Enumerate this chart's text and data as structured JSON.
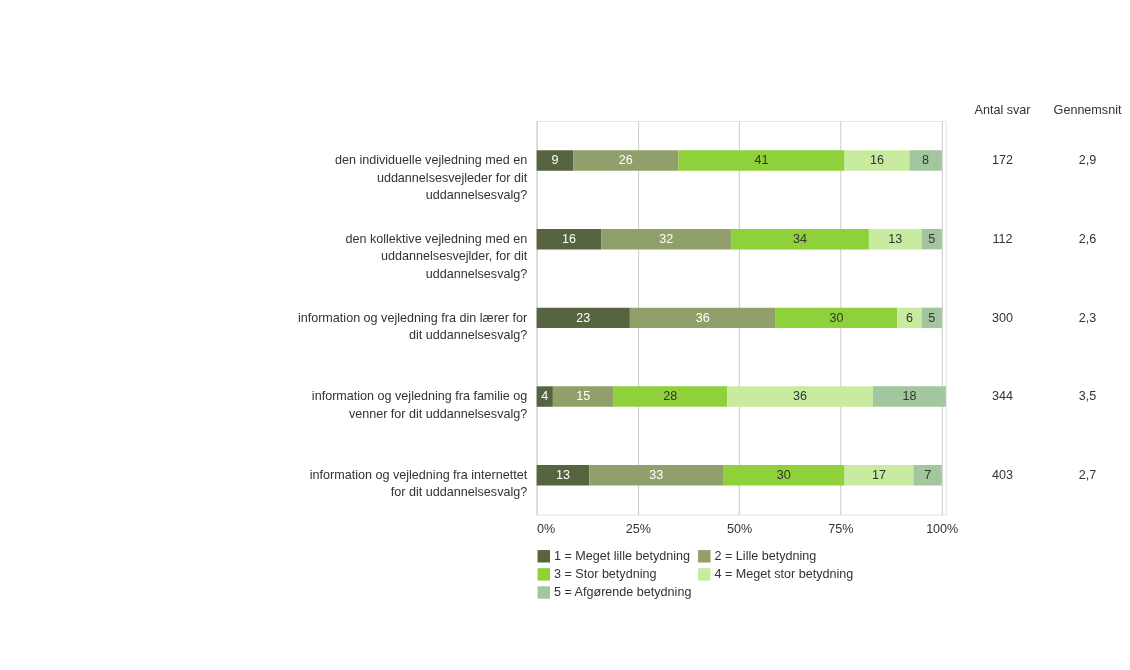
{
  "chart_data": {
    "type": "bar",
    "orientation": "horizontal",
    "stacked": true,
    "data_labels": true,
    "grid": "x",
    "legend": "bottom",
    "categories": [
      "den individuelle vejledning med en uddannelsesvejleder for dit uddannelsesvalg?",
      "den kollektive vejledning med en uddannelsesvejlder, for dit uddannelsesvalg?",
      "information og vejledning fra din lærer for dit uddannelsesvalg?",
      "information og vejledning fra familie og venner for dit uddannelsesvalg?",
      "information og vejledning fra internettet for dit uddannelsesvalg?"
    ],
    "series": [
      {
        "name": "1 = Meget lille betydning",
        "color": "#56643f",
        "values": [
          9,
          16,
          23,
          4,
          13
        ]
      },
      {
        "name": "2 = Lille betydning",
        "color": "#919f6a",
        "values": [
          26,
          32,
          36,
          15,
          33
        ]
      },
      {
        "name": "3 = Stor betydning",
        "color": "#8fd13a",
        "values": [
          41,
          34,
          30,
          28,
          30
        ]
      },
      {
        "name": "4 = Meget stor betydning",
        "color": "#c9eba0",
        "values": [
          16,
          13,
          6,
          36,
          17
        ]
      },
      {
        "name": "5 = Afgørende betydning",
        "color": "#a2c79e",
        "values": [
          8,
          5,
          5,
          18,
          7
        ]
      }
    ],
    "xlim": [
      0,
      101
    ],
    "xticks": [
      {
        "value": 0,
        "label": "0%"
      },
      {
        "value": 25,
        "label": "25%"
      },
      {
        "value": 50,
        "label": "50%"
      },
      {
        "value": 75,
        "label": "75%"
      },
      {
        "value": 100,
        "label": "100%"
      }
    ],
    "annotations": [
      "Antal svar",
      "Gennemsnit",
      "172",
      "2,9",
      "112",
      "2,6",
      "300",
      "2,3",
      "344",
      "3,5",
      "403",
      "2,7"
    ]
  }
}
